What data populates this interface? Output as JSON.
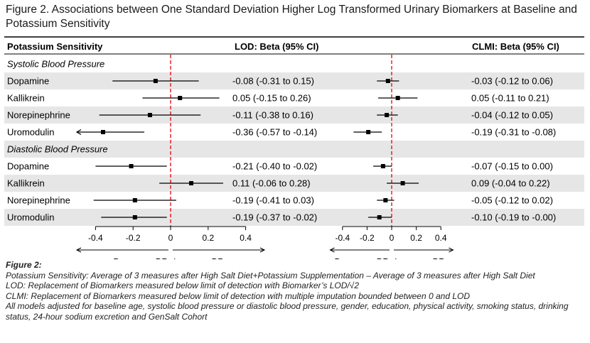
{
  "figure": {
    "title": "Figure 2. Associations between One Standard Deviation Higher Log Transformed Urinary Biomarkers at Baseline and Potassium Sensitivity"
  },
  "table": {
    "header_label": "Potassium Sensitivity",
    "col_lod_header": "LOD: Beta (95% CI)",
    "col_clmi_header": "CLMI: Beta (95% CI)"
  },
  "axis": {
    "ticks": [
      "-0.4",
      "-0.2",
      "0",
      "0.2",
      "0.4"
    ],
    "decrease_label": "Decrease BP",
    "increase_label": "Increase BP"
  },
  "caption": {
    "heading": "Figure 2:",
    "lines": [
      "Potassium Sensitivity: Average of 3 measures after High Salt Diet+Potassium Supplementation – Average of 3 measures after High Salt Diet",
      "LOD: Replacement of Biomarkers measured below limit of detection with Biomarker’s LOD/√2",
      "CLMI: Replacement of Biomarkers measured below limit of detection with multiple imputation bounded between 0 and LOD",
      "All models adjusted for baseline age, systolic blood pressure or diastolic blood pressure, gender, education, physical activity, smoking status, drinking status, 24-hour sodium excretion and GenSalt Cohort"
    ]
  },
  "colors": {
    "row_shade": "#e6e6e6",
    "reference_line": "#e8000b",
    "marker": "#000000"
  },
  "chart_data": {
    "type": "forest",
    "xlim": [
      -0.5,
      0.5
    ],
    "x_ticks": [
      -0.4,
      -0.2,
      0,
      0.2,
      0.4
    ],
    "reference_x": 0,
    "groups": [
      {
        "label": "Systolic Blood Pressure",
        "rows": [
          {
            "label": "Dopamine",
            "lod": {
              "beta": -0.08,
              "lo": -0.31,
              "hi": 0.15,
              "text": "-0.08 (-0.31 to 0.15)"
            },
            "clmi": {
              "beta": -0.03,
              "lo": -0.12,
              "hi": 0.06,
              "text": "-0.03 (-0.12 to 0.06)"
            }
          },
          {
            "label": "Kallikrein",
            "lod": {
              "beta": 0.05,
              "lo": -0.15,
              "hi": 0.26,
              "text": "0.05 (-0.15 to 0.26)"
            },
            "clmi": {
              "beta": 0.05,
              "lo": -0.11,
              "hi": 0.21,
              "text": "0.05 (-0.11 to 0.21)"
            }
          },
          {
            "label": "Norepinephrine",
            "lod": {
              "beta": -0.11,
              "lo": -0.38,
              "hi": 0.16,
              "text": "-0.11 (-0.38 to 0.16)"
            },
            "clmi": {
              "beta": -0.04,
              "lo": -0.12,
              "hi": 0.05,
              "text": "-0.04 (-0.12 to 0.05)"
            }
          },
          {
            "label": "Uromodulin",
            "lod": {
              "beta": -0.36,
              "lo": -0.57,
              "hi": -0.14,
              "text": "-0.36 (-0.57 to -0.14)"
            },
            "clmi": {
              "beta": -0.19,
              "lo": -0.31,
              "hi": -0.08,
              "text": "-0.19 (-0.31 to -0.08)"
            }
          }
        ]
      },
      {
        "label": "Diastolic Blood Pressure",
        "rows": [
          {
            "label": "Dopamine",
            "lod": {
              "beta": -0.21,
              "lo": -0.4,
              "hi": -0.02,
              "text": "-0.21 (-0.40 to -0.02)"
            },
            "clmi": {
              "beta": -0.07,
              "lo": -0.15,
              "hi": 0.0,
              "text": "-0.07 (-0.15 to 0.00)"
            }
          },
          {
            "label": "Kallikrein",
            "lod": {
              "beta": 0.11,
              "lo": -0.06,
              "hi": 0.28,
              "text": "0.11 (-0.06 to 0.28)"
            },
            "clmi": {
              "beta": 0.09,
              "lo": -0.04,
              "hi": 0.22,
              "text": "0.09 (-0.04 to 0.22)"
            }
          },
          {
            "label": "Norepinephrine",
            "lod": {
              "beta": -0.19,
              "lo": -0.41,
              "hi": 0.03,
              "text": "-0.19 (-0.41 to 0.03)"
            },
            "clmi": {
              "beta": -0.05,
              "lo": -0.12,
              "hi": 0.02,
              "text": "-0.05 (-0.12 to 0.02)"
            }
          },
          {
            "label": "Uromodulin",
            "lod": {
              "beta": -0.19,
              "lo": -0.37,
              "hi": -0.02,
              "text": "-0.19 (-0.37 to -0.02)"
            },
            "clmi": {
              "beta": -0.1,
              "lo": -0.19,
              "hi": -0.0,
              "text": "-0.10 (-0.19 to -0.00)"
            }
          }
        ]
      }
    ]
  }
}
